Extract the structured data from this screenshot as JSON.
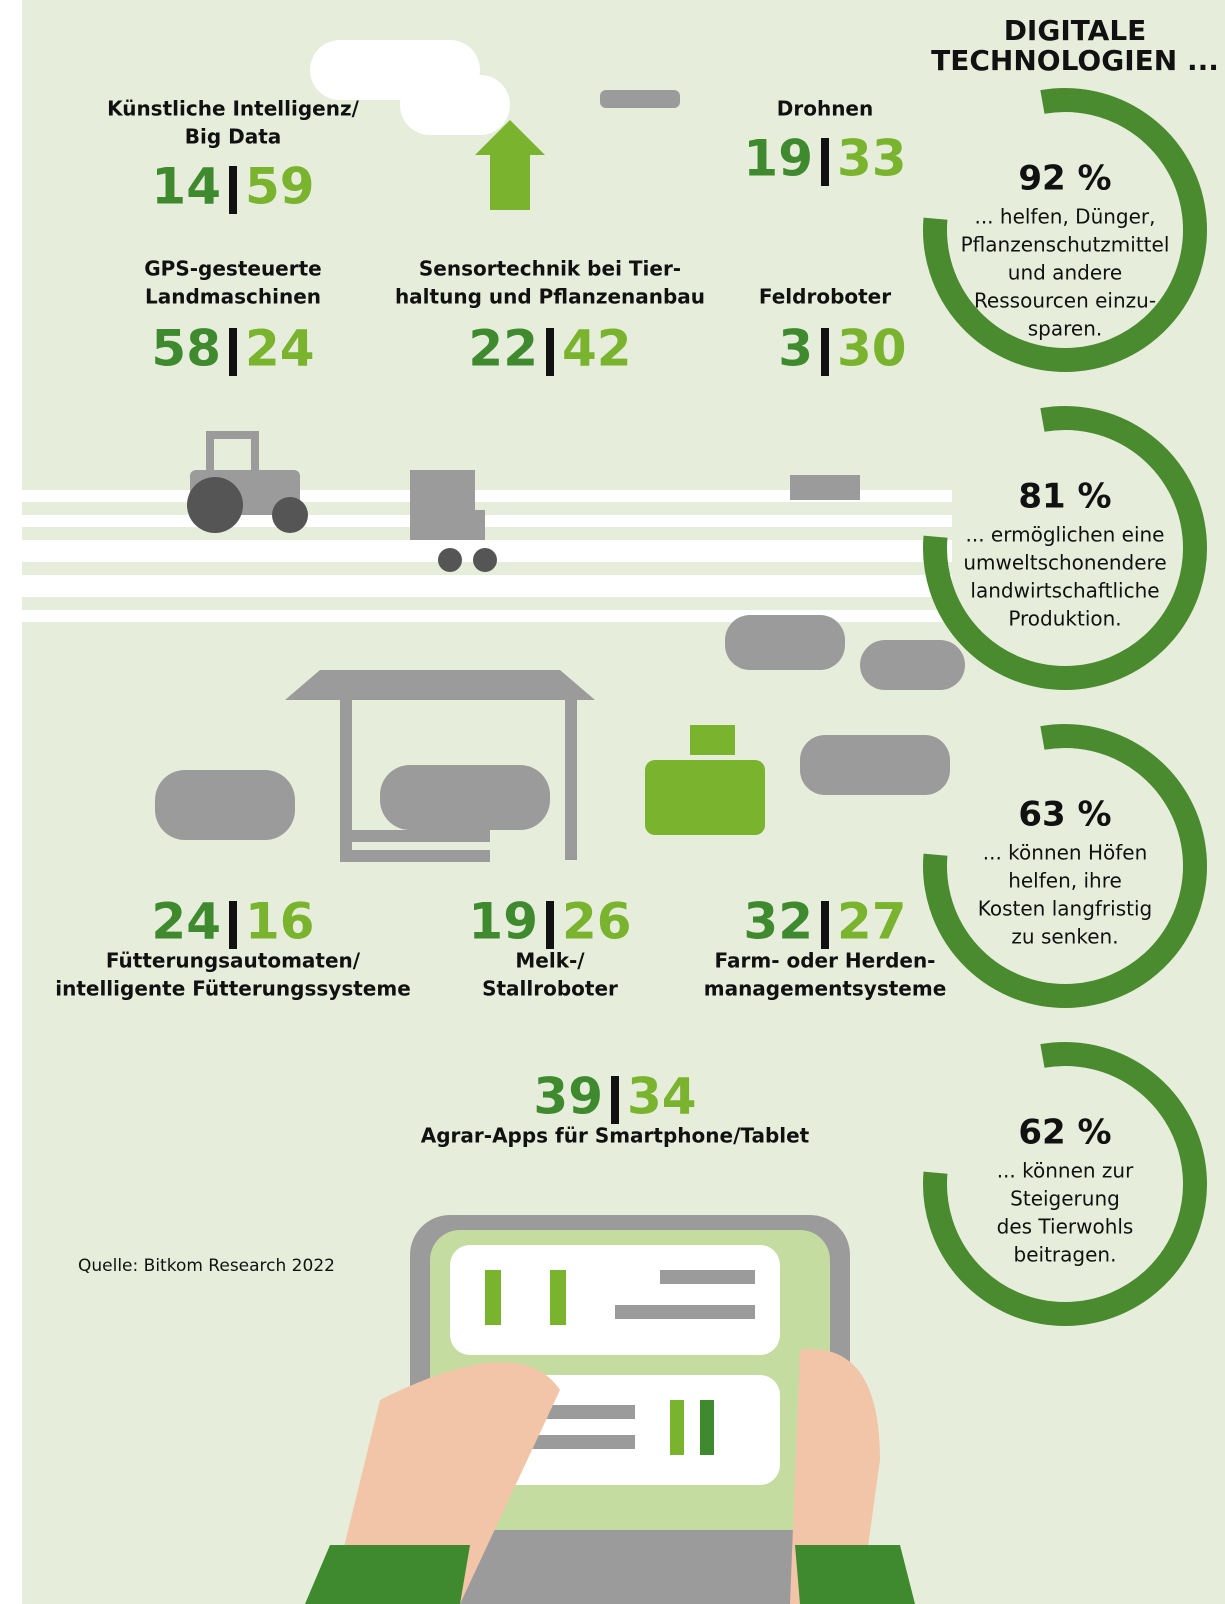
{
  "header": {
    "title": [
      "DIGITALE",
      "TECHNOLOGIEN ..."
    ]
  },
  "technologies": [
    {
      "name": [
        "Künstliche Intelligenz/",
        "Big Data"
      ],
      "values": [
        14,
        59
      ]
    },
    {
      "name": [
        "Drohnen"
      ],
      "values": [
        19,
        33
      ]
    },
    {
      "name": [
        "GPS-gesteuerte",
        "Landmaschinen"
      ],
      "values": [
        58,
        24
      ]
    },
    {
      "name": [
        "Sensortechnik bei Tier-",
        "haltung und Pflanzenanbau"
      ],
      "values": [
        22,
        42
      ]
    },
    {
      "name": [
        "Feldroboter"
      ],
      "values": [
        3,
        30
      ]
    },
    {
      "name": [
        "Fütterungsautomaten/",
        "intelligente Fütterungssysteme"
      ],
      "values": [
        24,
        16
      ]
    },
    {
      "name": [
        "Melk-/",
        "Stallroboter"
      ],
      "values": [
        19,
        26
      ]
    },
    {
      "name": [
        "Farm- oder Herden-",
        "managementsysteme"
      ],
      "values": [
        32,
        27
      ]
    },
    {
      "name": [
        "Agrar-Apps für Smartphone/Tablet"
      ],
      "values": [
        39,
        34
      ]
    }
  ],
  "benefits": [
    {
      "label": "92 %",
      "text": [
        "... helfen, Dünger,",
        "Pflanzenschutzmittel",
        "und andere",
        "Ressourcen einzu-",
        "sparen."
      ]
    },
    {
      "label": "81 %",
      "text": [
        "... ermöglichen eine",
        "umweltschonendere",
        "landwirtschaftliche",
        "Produktion."
      ]
    },
    {
      "label": "63 %",
      "text": [
        "... können Höfen",
        "helfen, ihre",
        "Kosten langfristig",
        "zu senken."
      ]
    },
    {
      "label": "62 %",
      "text": [
        "... können zur",
        "Steigerung",
        "des Tierwohls",
        "beitragen."
      ]
    }
  ],
  "source": "Quelle: Bitkom Research 2022"
}
